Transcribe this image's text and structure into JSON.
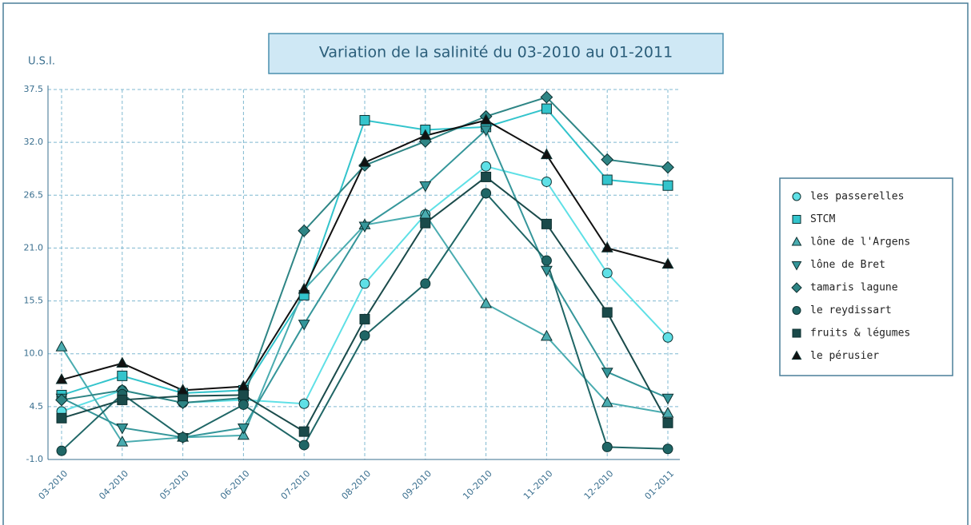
{
  "chart_data": {
    "type": "line",
    "title": "Variation de la salinité du 03-2010 au 01-2011",
    "y_label": "U.S.I.",
    "categories": [
      "03-2010",
      "04-2010",
      "05-2010",
      "06-2010",
      "07-2010",
      "08-2010",
      "09-2010",
      "10-2010",
      "11-2010",
      "12-2010",
      "01-2011"
    ],
    "ylim": [
      -1,
      37.5
    ],
    "yticks": [
      {
        "value": -1,
        "label": "-1.0"
      },
      4.5,
      {
        "value": 10,
        "label": "10.0"
      },
      15.5,
      {
        "value": 21,
        "label": "21.0"
      },
      26.5,
      {
        "value": 32,
        "label": "32.0"
      },
      37.5
    ],
    "grid": true,
    "legend": "right",
    "series": [
      {
        "name": "les passerelles",
        "color": "#5fe0e6",
        "marker": "circle",
        "values": [
          4.0,
          6.2,
          4.9,
          5.2,
          4.8,
          17.3,
          24.5,
          29.5,
          27.9,
          18.4,
          11.7
        ]
      },
      {
        "name": "STCM",
        "color": "#33c4cc",
        "marker": "square",
        "values": [
          5.7,
          7.7,
          5.9,
          6.2,
          16.1,
          34.3,
          33.3,
          33.6,
          35.5,
          28.1,
          27.5
        ]
      },
      {
        "name": "lône de l'Argens",
        "color": "#4aacb0",
        "marker": "triangle-up",
        "values": [
          10.7,
          0.8,
          1.3,
          1.5,
          16.7,
          23.4,
          24.5,
          15.2,
          11.8,
          4.9,
          3.8
        ]
      },
      {
        "name": "lône de Bret",
        "color": "#35969a",
        "marker": "triangle-down",
        "values": [
          5.4,
          2.3,
          1.3,
          2.3,
          13.1,
          23.3,
          27.5,
          33.3,
          18.7,
          8.1,
          5.4
        ]
      },
      {
        "name": "tamaris lagune",
        "color": "#2e8585",
        "marker": "diamond",
        "values": [
          5.2,
          6.2,
          4.9,
          5.4,
          22.8,
          29.6,
          32.1,
          34.7,
          36.7,
          30.2,
          29.4
        ]
      },
      {
        "name": "le reydissart",
        "color": "#1f6666",
        "marker": "circle",
        "values": [
          -0.1,
          5.8,
          1.3,
          4.7,
          0.5,
          11.9,
          17.3,
          26.7,
          19.7,
          0.3,
          0.1
        ]
      },
      {
        "name": "fruits & légumes",
        "color": "#1a4a4a",
        "marker": "square",
        "values": [
          3.3,
          5.2,
          5.6,
          5.7,
          1.9,
          13.6,
          23.6,
          28.4,
          23.5,
          14.3,
          2.8
        ]
      },
      {
        "name": "le pérusier",
        "color": "#111111",
        "marker": "triangle-up",
        "values": [
          7.3,
          9.0,
          6.2,
          6.6,
          16.7,
          29.9,
          32.7,
          34.3,
          30.7,
          21.0,
          19.3
        ]
      }
    ]
  }
}
